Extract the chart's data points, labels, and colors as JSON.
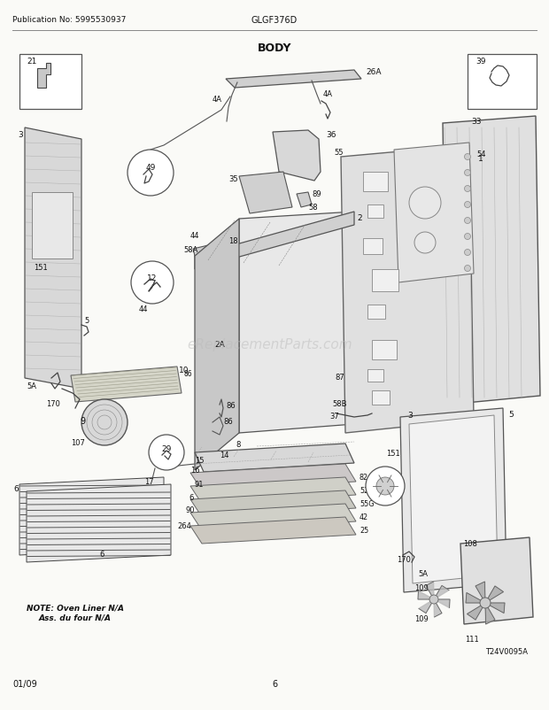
{
  "bg_color": "#fafaf7",
  "title": "BODY",
  "pub_no": "Publication No: 5995530937",
  "model": "GLGF376D",
  "date": "01/09",
  "page": "6",
  "watermark": "eReplacementParts.com",
  "note_line1": "NOTE: Oven Liner N/A",
  "note_line2": "Ass. du four N/A",
  "image_label": "T24V0095A",
  "fig_width": 6.2,
  "fig_height": 8.03,
  "dpi": 100
}
